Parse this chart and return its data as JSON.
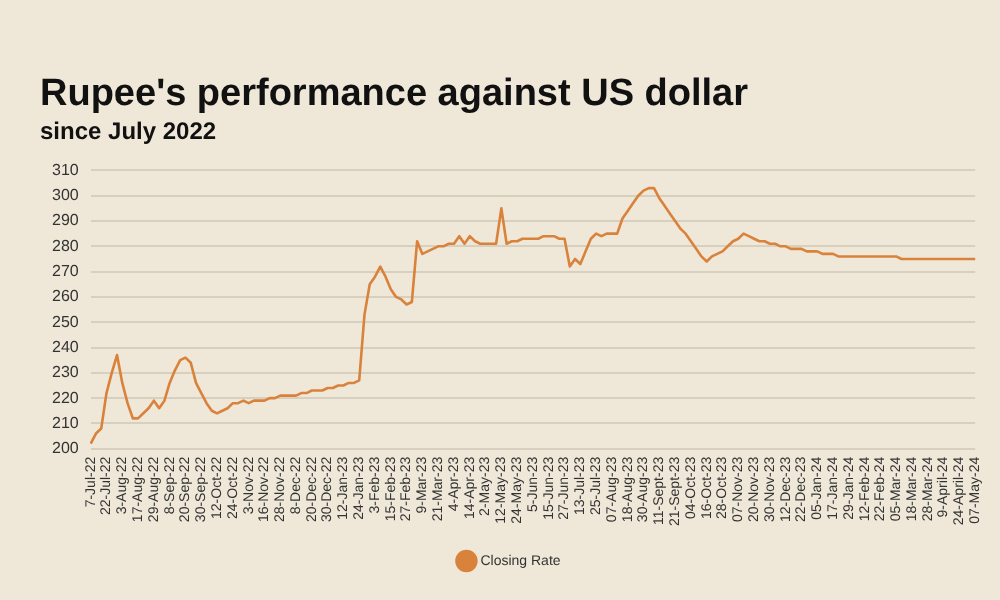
{
  "chart_data": {
    "type": "line",
    "title": "Rupee's performance against US dollar",
    "subtitle": "since July 2022",
    "categories": [
      "7-Jul-22",
      null,
      null,
      "22-Jul-22",
      null,
      null,
      "3-Aug-22",
      null,
      null,
      "17-Aug-22",
      null,
      null,
      "29-Aug-22",
      null,
      null,
      "8-Sep-22",
      null,
      null,
      "20-Sep-22",
      null,
      null,
      "30-Sep-22",
      null,
      null,
      "12-Oct-22",
      null,
      null,
      "24-Oct-22",
      null,
      null,
      "3-Nov-22",
      null,
      null,
      "16-Nov-22",
      null,
      null,
      "28-Nov-22",
      null,
      null,
      "8-Dec-22",
      null,
      null,
      "20-Dec-22",
      null,
      null,
      "30-Dec-22",
      null,
      null,
      "12-Jan-23",
      null,
      null,
      "24-Jan-23",
      null,
      null,
      "3-Feb-23",
      null,
      null,
      "15-Feb-23",
      null,
      null,
      "27-Feb-23",
      null,
      null,
      "9-Mar-23",
      null,
      null,
      "21-Mar-23",
      null,
      null,
      "4-Apr-23",
      null,
      null,
      "14-Apr-23",
      null,
      null,
      "2-May-23",
      null,
      null,
      "12-May-23",
      null,
      null,
      "24-May-23",
      null,
      null,
      "5-Jun-23",
      null,
      null,
      "15-Jun-23",
      null,
      null,
      "27-Jun-23",
      null,
      null,
      "13-Jul-23",
      null,
      null,
      "25-Jul-23",
      null,
      null,
      "07-Aug-23",
      null,
      null,
      "18-Aug-23",
      null,
      null,
      "30-Aug-23",
      null,
      null,
      "11-Sept-23",
      null,
      null,
      "21-Sept-23",
      null,
      null,
      "04-Oct-23",
      null,
      null,
      "16-Oct-23",
      null,
      null,
      "28-Oct-23",
      null,
      null,
      "07-Nov-23",
      null,
      null,
      "20-Nov-23",
      null,
      null,
      "30-Nov-23",
      null,
      null,
      "12-Dec-23",
      null,
      null,
      "22-Dec-23",
      null,
      null,
      "05-Jan-24",
      null,
      null,
      "17-Jan-24",
      null,
      null,
      "29-Jan-24",
      null,
      null,
      "12-Feb-24",
      null,
      null,
      "22-Feb-24",
      null,
      null,
      "05-Mar-24",
      null,
      null,
      "18-Mar-24",
      null,
      null,
      "28-Mar-24",
      null,
      null,
      "9-April-24",
      null,
      null,
      "24-April-24",
      null,
      null,
      "07-May-24"
    ],
    "series": [
      {
        "name": "Closing Rate",
        "color": "#d9823b",
        "values": [
          202,
          206,
          208,
          222,
          230,
          237,
          226,
          218,
          212,
          212,
          214,
          216,
          219,
          216,
          219,
          226,
          231,
          235,
          236,
          234,
          226,
          222,
          218,
          215,
          214,
          215,
          216,
          218,
          218,
          219,
          218,
          219,
          219,
          219,
          220,
          220,
          221,
          221,
          221,
          221,
          222,
          222,
          223,
          223,
          223,
          224,
          224,
          225,
          225,
          226,
          226,
          227,
          253,
          265,
          268,
          272,
          268,
          263,
          260,
          259,
          257,
          258,
          282,
          277,
          278,
          279,
          280,
          280,
          281,
          281,
          284,
          281,
          284,
          282,
          281,
          281,
          281,
          281,
          295,
          281,
          282,
          282,
          283,
          283,
          283,
          283,
          284,
          284,
          284,
          283,
          283,
          272,
          275,
          273,
          278,
          283,
          285,
          284,
          285,
          285,
          285,
          291,
          294,
          297,
          300,
          302,
          303,
          303,
          299,
          296,
          293,
          290,
          287,
          285,
          282,
          279,
          276,
          274,
          276,
          277,
          278,
          280,
          282,
          283,
          285,
          284,
          283,
          282,
          282,
          281,
          281,
          280,
          280,
          279,
          279,
          279,
          278,
          278,
          278,
          277,
          277,
          277,
          276,
          276,
          276,
          276,
          276,
          276,
          276,
          276,
          276,
          276,
          276,
          276,
          275,
          275,
          275,
          275,
          275,
          275,
          275,
          275,
          275,
          275,
          275,
          275,
          275,
          275,
          275
        ]
      }
    ],
    "ylim": [
      200,
      310
    ],
    "yticks": [
      200,
      210,
      220,
      230,
      240,
      250,
      260,
      270,
      280,
      290,
      300,
      310
    ],
    "grid": "y",
    "legend": "bottom",
    "marker": "none",
    "line_style": "solid"
  }
}
